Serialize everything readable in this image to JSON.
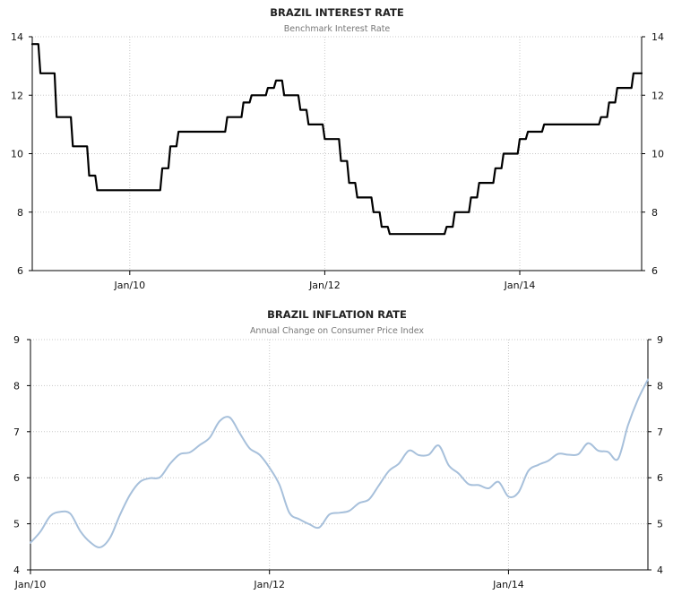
{
  "chart_data": [
    {
      "type": "line",
      "title": "BRAZIL INTEREST RATE",
      "subtitle": "Benchmark Interest Rate",
      "xlabel": "",
      "ylabel": "",
      "x_ticks": [
        "Jan/10",
        "Jan/12",
        "Jan/14"
      ],
      "y_ticks": [
        6,
        8,
        10,
        12,
        14
      ],
      "ylim": [
        6,
        14
      ],
      "xlim": [
        "2009-01",
        "2015-04"
      ],
      "grid": true,
      "color": "#000000",
      "series": [
        {
          "x": [
            "2009-01",
            "2009-02",
            "2009-03",
            "2009-04",
            "2009-05",
            "2009-06",
            "2009-07",
            "2009-08",
            "2009-09",
            "2009-10",
            "2009-11",
            "2009-12",
            "2010-01",
            "2010-02",
            "2010-03",
            "2010-04",
            "2010-05",
            "2010-06",
            "2010-07",
            "2010-08",
            "2010-09",
            "2010-10",
            "2010-11",
            "2010-12",
            "2011-01",
            "2011-02",
            "2011-03",
            "2011-04",
            "2011-05",
            "2011-06",
            "2011-07",
            "2011-08",
            "2011-09",
            "2011-10",
            "2011-11",
            "2011-12",
            "2012-01",
            "2012-02",
            "2012-03",
            "2012-04",
            "2012-05",
            "2012-06",
            "2012-07",
            "2012-08",
            "2012-09",
            "2012-10",
            "2012-11",
            "2012-12",
            "2013-01",
            "2013-02",
            "2013-03",
            "2013-04",
            "2013-05",
            "2013-06",
            "2013-07",
            "2013-08",
            "2013-09",
            "2013-10",
            "2013-11",
            "2013-12",
            "2014-01",
            "2014-02",
            "2014-03",
            "2014-04",
            "2014-05",
            "2014-06",
            "2014-07",
            "2014-08",
            "2014-09",
            "2014-10",
            "2014-11",
            "2014-12",
            "2015-01",
            "2015-02",
            "2015-03"
          ],
          "values": [
            13.75,
            12.75,
            12.75,
            11.25,
            11.25,
            10.25,
            10.25,
            9.25,
            8.75,
            8.75,
            8.75,
            8.75,
            8.75,
            8.75,
            8.75,
            8.75,
            9.5,
            10.25,
            10.75,
            10.75,
            10.75,
            10.75,
            10.75,
            10.75,
            11.25,
            11.25,
            11.75,
            12.0,
            12.0,
            12.25,
            12.5,
            12.0,
            12.0,
            11.5,
            11.0,
            11.0,
            10.5,
            10.5,
            9.75,
            9.0,
            8.5,
            8.5,
            8.0,
            7.5,
            7.25,
            7.25,
            7.25,
            7.25,
            7.25,
            7.25,
            7.25,
            7.5,
            8.0,
            8.0,
            8.5,
            9.0,
            9.0,
            9.5,
            10.0,
            10.0,
            10.5,
            10.75,
            10.75,
            11.0,
            11.0,
            11.0,
            11.0,
            11.0,
            11.0,
            11.0,
            11.25,
            11.75,
            12.25,
            12.25,
            12.75
          ]
        }
      ]
    },
    {
      "type": "line",
      "title": "BRAZIL INFLATION RATE",
      "subtitle": "Annual Change on Consumer Price Index",
      "xlabel": "",
      "ylabel": "",
      "x_ticks": [
        "Jan/10",
        "Jan/12",
        "Jan/14"
      ],
      "y_ticks": [
        4,
        5,
        6,
        7,
        8,
        9
      ],
      "ylim": [
        4,
        9
      ],
      "xlim": [
        "2010-01",
        "2015-03"
      ],
      "grid": true,
      "color": "#a7c0db",
      "series": [
        {
          "x": [
            "2010-01",
            "2010-02",
            "2010-03",
            "2010-04",
            "2010-05",
            "2010-06",
            "2010-07",
            "2010-08",
            "2010-09",
            "2010-10",
            "2010-11",
            "2010-12",
            "2011-01",
            "2011-02",
            "2011-03",
            "2011-04",
            "2011-05",
            "2011-06",
            "2011-07",
            "2011-08",
            "2011-09",
            "2011-10",
            "2011-11",
            "2011-12",
            "2012-01",
            "2012-02",
            "2012-03",
            "2012-04",
            "2012-05",
            "2012-06",
            "2012-07",
            "2012-08",
            "2012-09",
            "2012-10",
            "2012-11",
            "2012-12",
            "2013-01",
            "2013-02",
            "2013-03",
            "2013-04",
            "2013-05",
            "2013-06",
            "2013-07",
            "2013-08",
            "2013-09",
            "2013-10",
            "2013-11",
            "2013-12",
            "2014-01",
            "2014-02",
            "2014-03",
            "2014-04",
            "2014-05",
            "2014-06",
            "2014-07",
            "2014-08",
            "2014-09",
            "2014-10",
            "2014-11",
            "2014-12",
            "2015-01",
            "2015-02",
            "2015-03"
          ],
          "values": [
            4.59,
            4.83,
            5.17,
            5.26,
            5.22,
            4.84,
            4.6,
            4.49,
            4.7,
            5.2,
            5.63,
            5.91,
            5.99,
            6.01,
            6.3,
            6.51,
            6.55,
            6.71,
            6.87,
            7.23,
            7.31,
            6.97,
            6.64,
            6.5,
            6.22,
            5.85,
            5.24,
            5.1,
            4.99,
            4.92,
            5.2,
            5.24,
            5.28,
            5.45,
            5.53,
            5.84,
            6.15,
            6.31,
            6.59,
            6.49,
            6.5,
            6.7,
            6.27,
            6.09,
            5.86,
            5.84,
            5.77,
            5.91,
            5.59,
            5.68,
            6.15,
            6.28,
            6.37,
            6.52,
            6.5,
            6.51,
            6.75,
            6.59,
            6.56,
            6.41,
            7.14,
            7.7,
            8.13
          ]
        }
      ]
    }
  ]
}
